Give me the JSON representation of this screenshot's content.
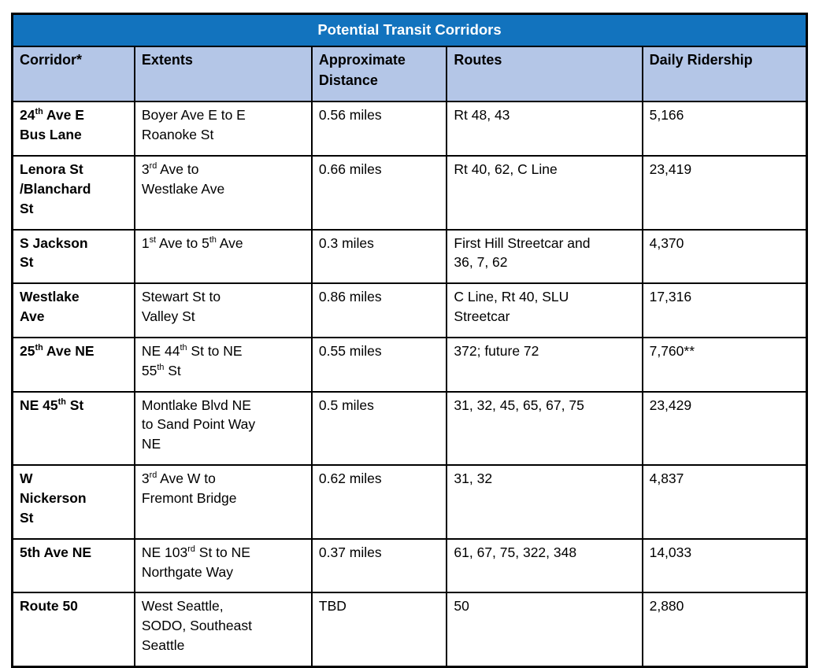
{
  "table": {
    "title": "Potential Transit Corridors",
    "columns": [
      "Corridor*",
      "Extents",
      "Approximate\nDistance",
      "Routes",
      "Daily Ridership"
    ],
    "rows": [
      {
        "corridor": "24^{th} Ave E\nBus Lane",
        "extents": "Boyer Ave E to E\nRoanoke St",
        "distance": "0.56 miles",
        "routes": "Rt 48, 43",
        "daily_ridership": "5,166"
      },
      {
        "corridor": "Lenora St\n/Blanchard\nSt",
        "extents": "3^{rd} Ave to\nWestlake Ave",
        "distance": "0.66 miles",
        "routes": "Rt 40, 62, C Line",
        "daily_ridership": "23,419"
      },
      {
        "corridor": "S Jackson\nSt",
        "extents": "1^{st} Ave to 5^{th} Ave",
        "distance": "0.3 miles",
        "routes": "First Hill Streetcar and\n36, 7, 62",
        "daily_ridership": "4,370"
      },
      {
        "corridor": "Westlake\nAve",
        "extents": "Stewart St to\nValley St",
        "distance": "0.86 miles",
        "routes": "C Line, Rt 40, SLU\nStreetcar",
        "daily_ridership": "17,316"
      },
      {
        "corridor": "25^{th} Ave NE",
        "extents": "NE 44^{th} St to NE\n55^{th} St",
        "distance": "0.55 miles",
        "routes": "372; future 72",
        "daily_ridership": "7,760**"
      },
      {
        "corridor": "NE 45^{th} St",
        "extents": "Montlake Blvd NE\nto Sand Point Way\nNE",
        "distance": "0.5 miles",
        "routes": "31, 32, 45, 65, 67, 75",
        "daily_ridership": "23,429"
      },
      {
        "corridor": "W\nNickerson\nSt",
        "extents": "3^{rd} Ave W to\nFremont Bridge",
        "distance": "0.62 miles",
        "routes": "31, 32",
        "daily_ridership": "4,837"
      },
      {
        "corridor": "5th Ave NE",
        "extents": "NE 103^{rd} St to NE\nNorthgate Way",
        "distance": "0.37 miles",
        "routes": "61, 67, 75, 322, 348",
        "daily_ridership": "14,033"
      },
      {
        "corridor": "Route 50",
        "extents": "West Seattle,\nSODO, Southeast\nSeattle",
        "distance": "TBD",
        "routes": "50",
        "daily_ridership": "2,880"
      }
    ],
    "colors": {
      "title_bg": "#1273BE",
      "title_text": "#ffffff",
      "header_bg": "#B4C6E7",
      "border": "#000000",
      "body_text": "#000000",
      "page_bg": "#ffffff"
    }
  }
}
